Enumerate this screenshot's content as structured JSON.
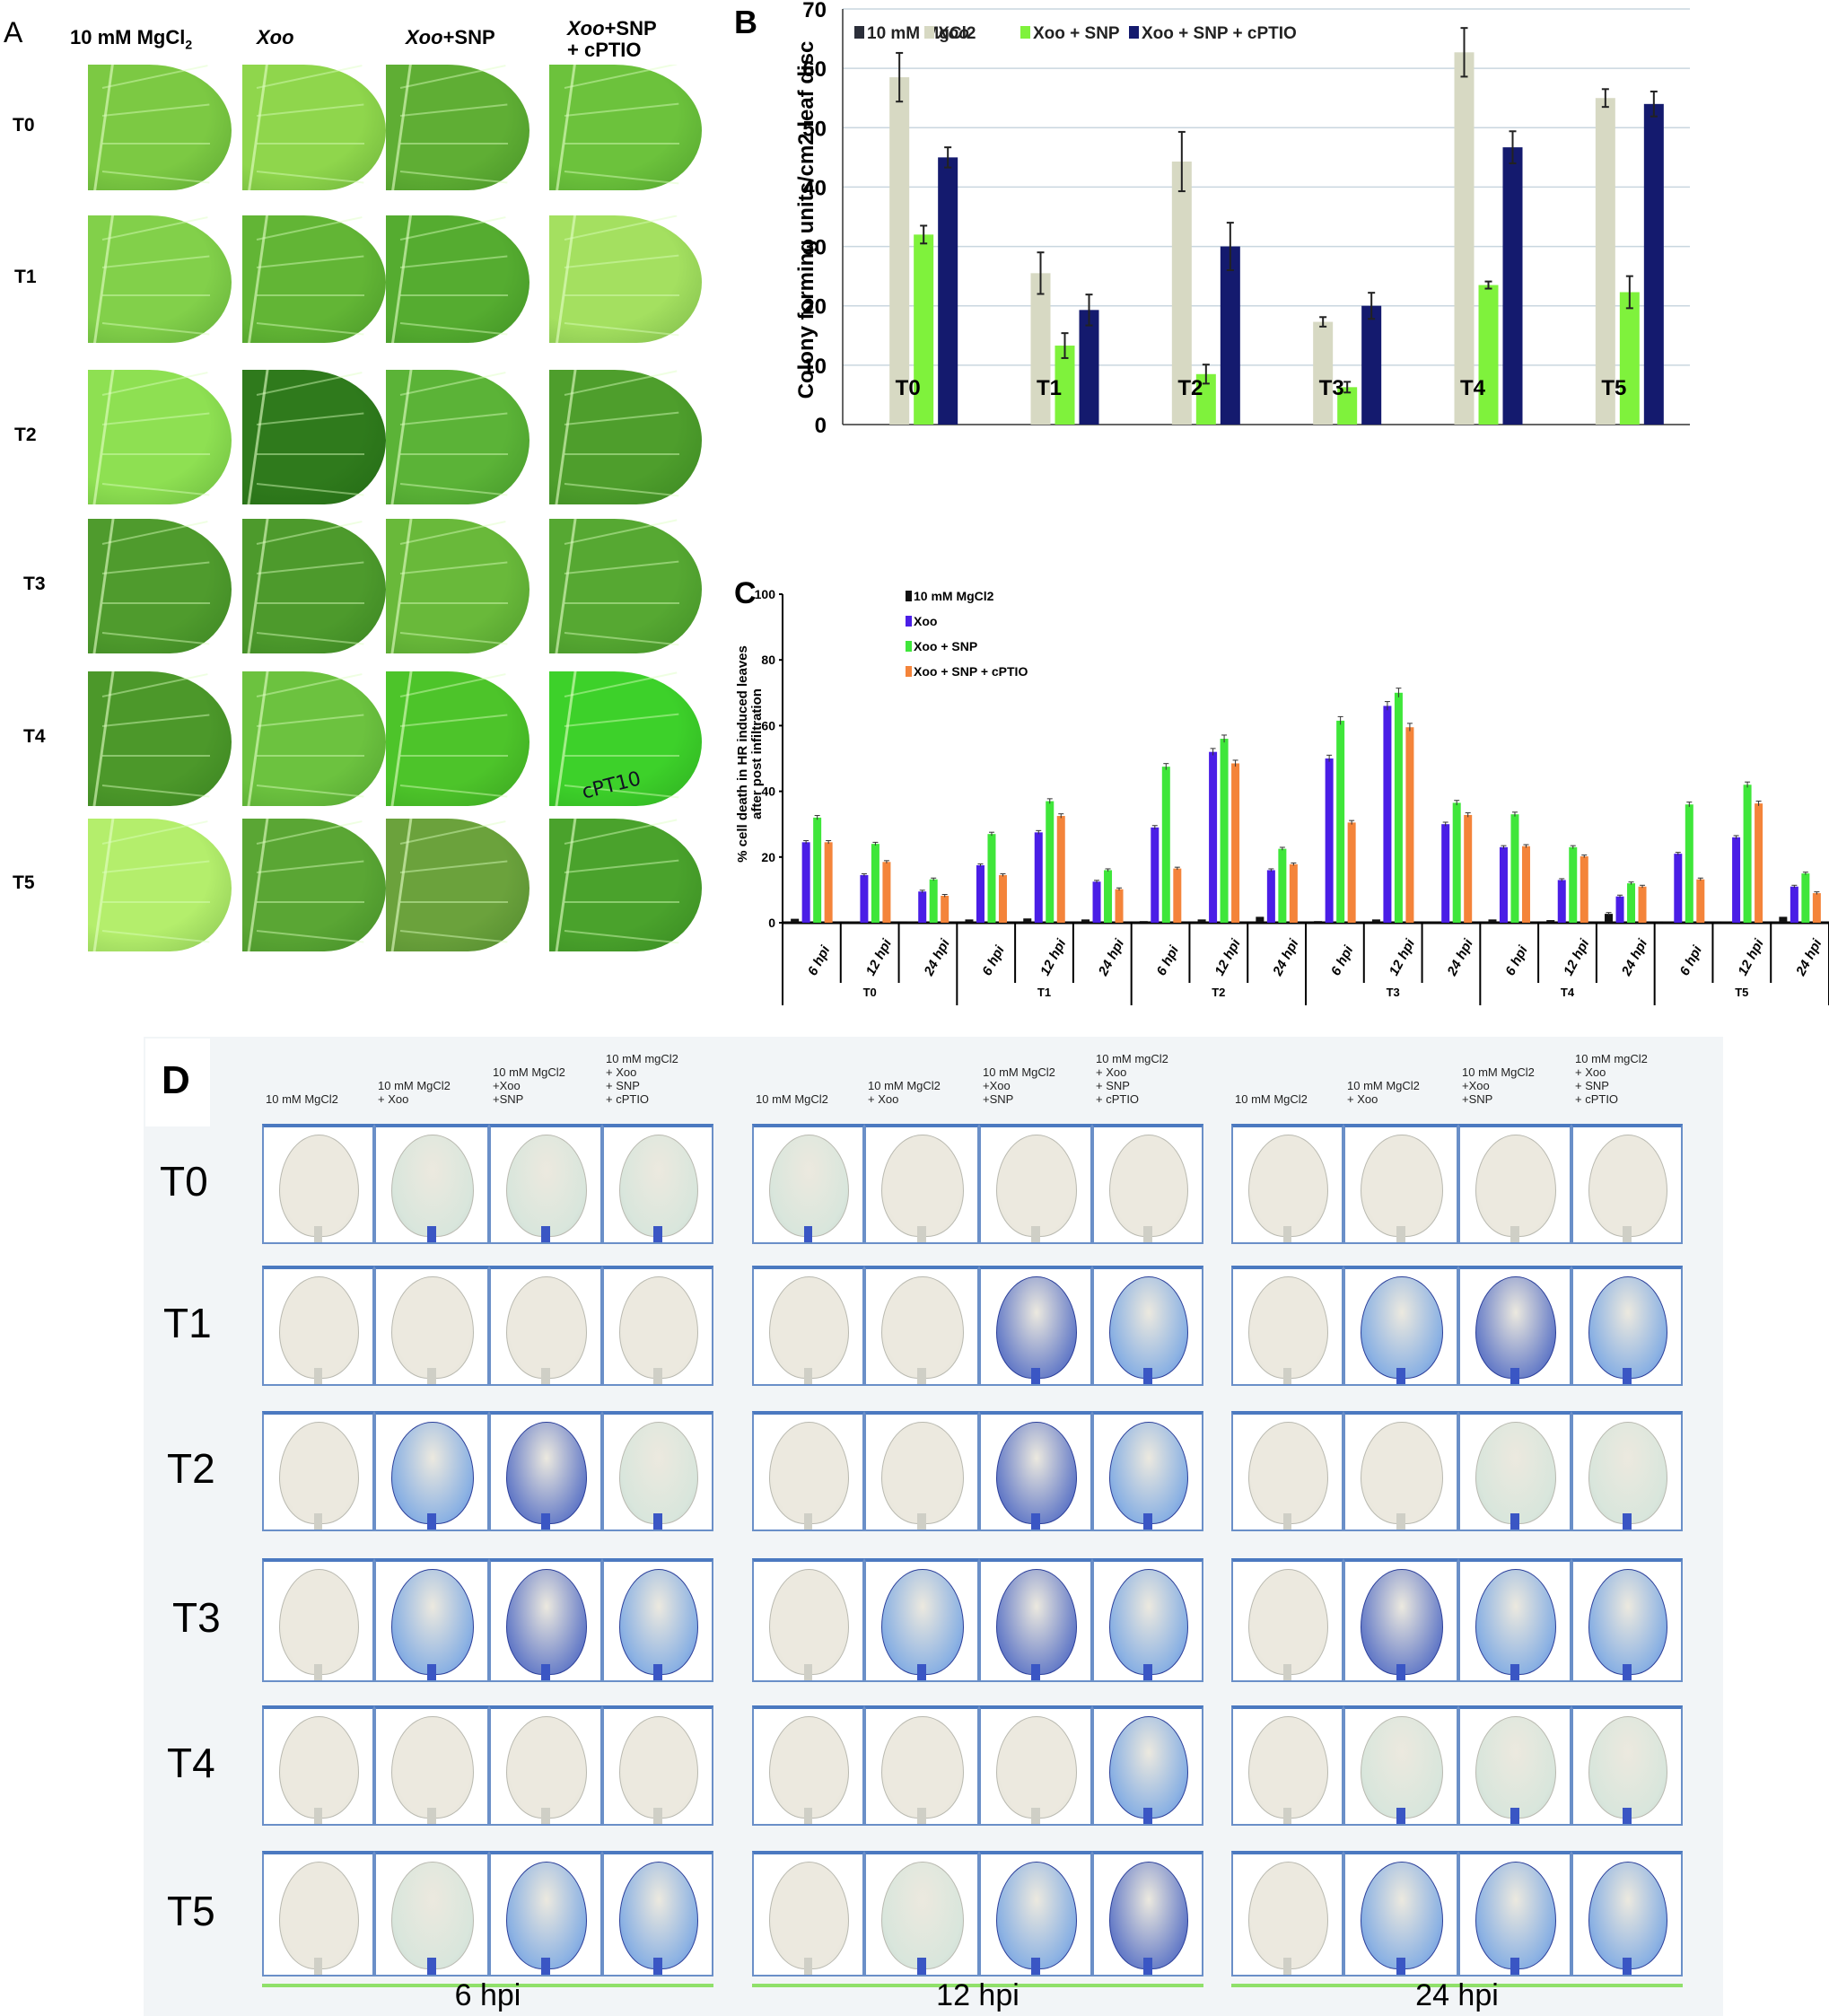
{
  "panels": {
    "A": {
      "letter": "A",
      "columns": [
        {
          "label": "10 mM MgCl",
          "sub": "2",
          "italic_prefix": ""
        },
        {
          "label": "",
          "italic_prefix": "Xoo"
        },
        {
          "label": "+SNP",
          "italic_prefix": "Xoo"
        },
        {
          "label": "+SNP",
          "line2": "+ cPTIO",
          "italic_prefix": "Xoo"
        }
      ],
      "rows": [
        "T0",
        "T1",
        "T2",
        "T3",
        "T4",
        "T5"
      ],
      "leaf_colors": [
        [
          "#7cc943",
          "#8fd64c",
          "#5fae34",
          "#6cc23c"
        ],
        [
          "#82d04a",
          "#62b535",
          "#55ac30",
          "#a4e060"
        ],
        [
          "#8ee052",
          "#2f7a1c",
          "#5bb337",
          "#4e9e2c"
        ],
        [
          "#4f9b2d",
          "#4d9a2c",
          "#69b93a",
          "#56a832"
        ],
        [
          "#4c982a",
          "#6cc23f",
          "#4dc42a",
          "#3dd12a"
        ],
        [
          "#b4ee6c",
          "#5aa634",
          "#6ba23c",
          "#4aa22c"
        ]
      ],
      "annotations": {
        "T4_col4": "cPT10"
      }
    },
    "B": {
      "letter": "B",
      "legend": [
        "10 mM MgCl2",
        "Xoo",
        "Xoo + SNP",
        "Xoo + SNP + cPTIO"
      ],
      "ylabel": "Colony forming units/cm2 leaf disc",
      "yticks": [
        "0",
        "10",
        "20",
        "30",
        "40",
        "50",
        "60",
        "70"
      ],
      "categories": [
        "T0",
        "T1",
        "T2",
        "T3",
        "T4",
        "T5"
      ]
    },
    "C": {
      "letter": "C",
      "legend": [
        "10 mM MgCl2",
        "Xoo",
        "Xoo + SNP",
        "Xoo + SNP + cPTIO"
      ],
      "ylabel_line1": "% cell death in HR induced leaves",
      "ylabel_line2": "after post infiltration",
      "yticks": [
        "0",
        "20",
        "40",
        "60",
        "80",
        "100"
      ],
      "sub_categories": [
        "6 hpi",
        "12 hpi",
        "24 hpi"
      ],
      "groups": [
        "T0",
        "T1",
        "T2",
        "T3",
        "T4",
        "T5"
      ]
    },
    "D": {
      "letter": "D",
      "rows": [
        "T0",
        "T1",
        "T2",
        "T3",
        "T4",
        "T5"
      ],
      "time_groups": [
        {
          "label": "6 hpi",
          "headers": [
            "10 mM MgCl2",
            "10 mM MgCl2\n+ Xoo",
            "10 mM MgCl2\n+Xoo\n+SNP",
            "10 mM mgCl2\n+ Xoo\n+ SNP\n+ cPTIO"
          ]
        },
        {
          "label": "12 hpi",
          "headers": [
            "10 mM MgCl2",
            "10 mM MgCl2\n+ Xoo",
            "10 mM MgCl2\n+Xoo\n+SNP",
            "10 mM mgCl2\n+ Xoo\n+ SNP\n+ cPTIO"
          ]
        },
        {
          "label": "24 hpi",
          "headers": [
            "10 mM MgCl2",
            "10 mM MgCl2\n+ Xoo",
            "10 mM MgCl2\n+Xoo\n+SNP",
            "10 mM mgCl2\n+ Xoo\n+ SNP\n+ cPTIO"
          ]
        }
      ]
    }
  },
  "colors": {
    "mgcl2": "#2b2f3a",
    "xoo_B": "#d7d9c3",
    "xoo_snp_B": "#7ff23c",
    "xoo_snp_cptio_B": "#141a6e",
    "mgcl2_C": "#111111",
    "xoo_C": "#4a1ee6",
    "xoo_snp_C": "#3fe63a",
    "xoo_snp_cptio_C": "#f4843a",
    "grid": "#c9d6df"
  },
  "chart_data": [
    {
      "type": "bar",
      "title": "B",
      "xlabel": "",
      "ylabel": "Colony forming units/cm2 leaf disc",
      "ylim": [
        0,
        70
      ],
      "grid": true,
      "legend_position": "top",
      "categories": [
        "T0",
        "T1",
        "T2",
        "T3",
        "T4",
        "T5"
      ],
      "series": [
        {
          "name": "10 mM MgCl2",
          "values": [
            0,
            0,
            0,
            0,
            0,
            0
          ],
          "errors": [
            0,
            0,
            0,
            0,
            0,
            0
          ]
        },
        {
          "name": "Xoo",
          "values": [
            58.5,
            25.5,
            44.3,
            17.3,
            62.7,
            55
          ],
          "errors": [
            4.1,
            3.5,
            5,
            0.8,
            4.1,
            1.5
          ]
        },
        {
          "name": "Xoo + SNP",
          "values": [
            32,
            13.3,
            8.5,
            6.3,
            23.5,
            22.3
          ],
          "errors": [
            1.5,
            2.1,
            1.6,
            0.9,
            0.6,
            2.7
          ]
        },
        {
          "name": "Xoo + SNP + cPTIO",
          "values": [
            45,
            19.3,
            30,
            20,
            46.7,
            54
          ],
          "errors": [
            1.7,
            2.6,
            4,
            2.2,
            2.7,
            2.1
          ]
        }
      ]
    },
    {
      "type": "bar",
      "title": "C",
      "xlabel": "",
      "ylabel": "% cell death in HR induced leaves after post infiltration",
      "ylim": [
        0,
        100
      ],
      "grid": false,
      "legend_position": "top-left",
      "categories": [
        "T0 6 hpi",
        "T0 12 hpi",
        "T0 24 hpi",
        "T1 6 hpi",
        "T1 12 hpi",
        "T1 24 hpi",
        "T2 6 hpi",
        "T2 12 hpi",
        "T2 24 hpi",
        "T3 6 hpi",
        "T3 12 hpi",
        "T3 24 hpi",
        "T4 6 hpi",
        "T4 12 hpi",
        "T4 24 hpi",
        "T5 6 hpi",
        "T5 12 hpi",
        "T5 24 hpi"
      ],
      "series": [
        {
          "name": "10 mM MgCl2",
          "values": [
            1.2,
            0.3,
            0.3,
            1,
            1.3,
            1,
            0.5,
            1,
            1.8,
            0.5,
            1,
            0.2,
            1,
            0.8,
            2.7,
            0,
            0.3,
            1.8
          ]
        },
        {
          "name": "Xoo",
          "values": [
            24.5,
            14.5,
            9.5,
            17.5,
            27.5,
            12.5,
            29,
            52,
            16,
            50,
            66,
            30,
            23,
            13,
            8,
            21,
            26,
            11
          ]
        },
        {
          "name": "Xoo + SNP",
          "values": [
            32,
            24,
            13.2,
            27,
            37,
            16,
            47.5,
            56,
            22.5,
            61.5,
            70,
            36.5,
            33,
            23,
            12,
            36,
            42,
            15
          ]
        },
        {
          "name": "Xoo + SNP + cPTIO",
          "values": [
            24.5,
            18.5,
            8.2,
            14.5,
            32.5,
            10.2,
            16.5,
            48.5,
            17.8,
            30.5,
            59.5,
            32.8,
            23.3,
            20.2,
            11,
            13.2,
            36.3,
            9
          ]
        }
      ]
    }
  ]
}
